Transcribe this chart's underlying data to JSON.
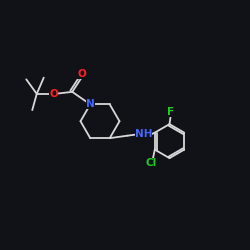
{
  "background_color": "#111118",
  "bond_color": "#d8d8d8",
  "atom_colors": {
    "N": "#4466ff",
    "O": "#ff2222",
    "F": "#22cc22",
    "Cl": "#22cc22"
  },
  "bond_width": 1.3,
  "font_size": 7.5
}
